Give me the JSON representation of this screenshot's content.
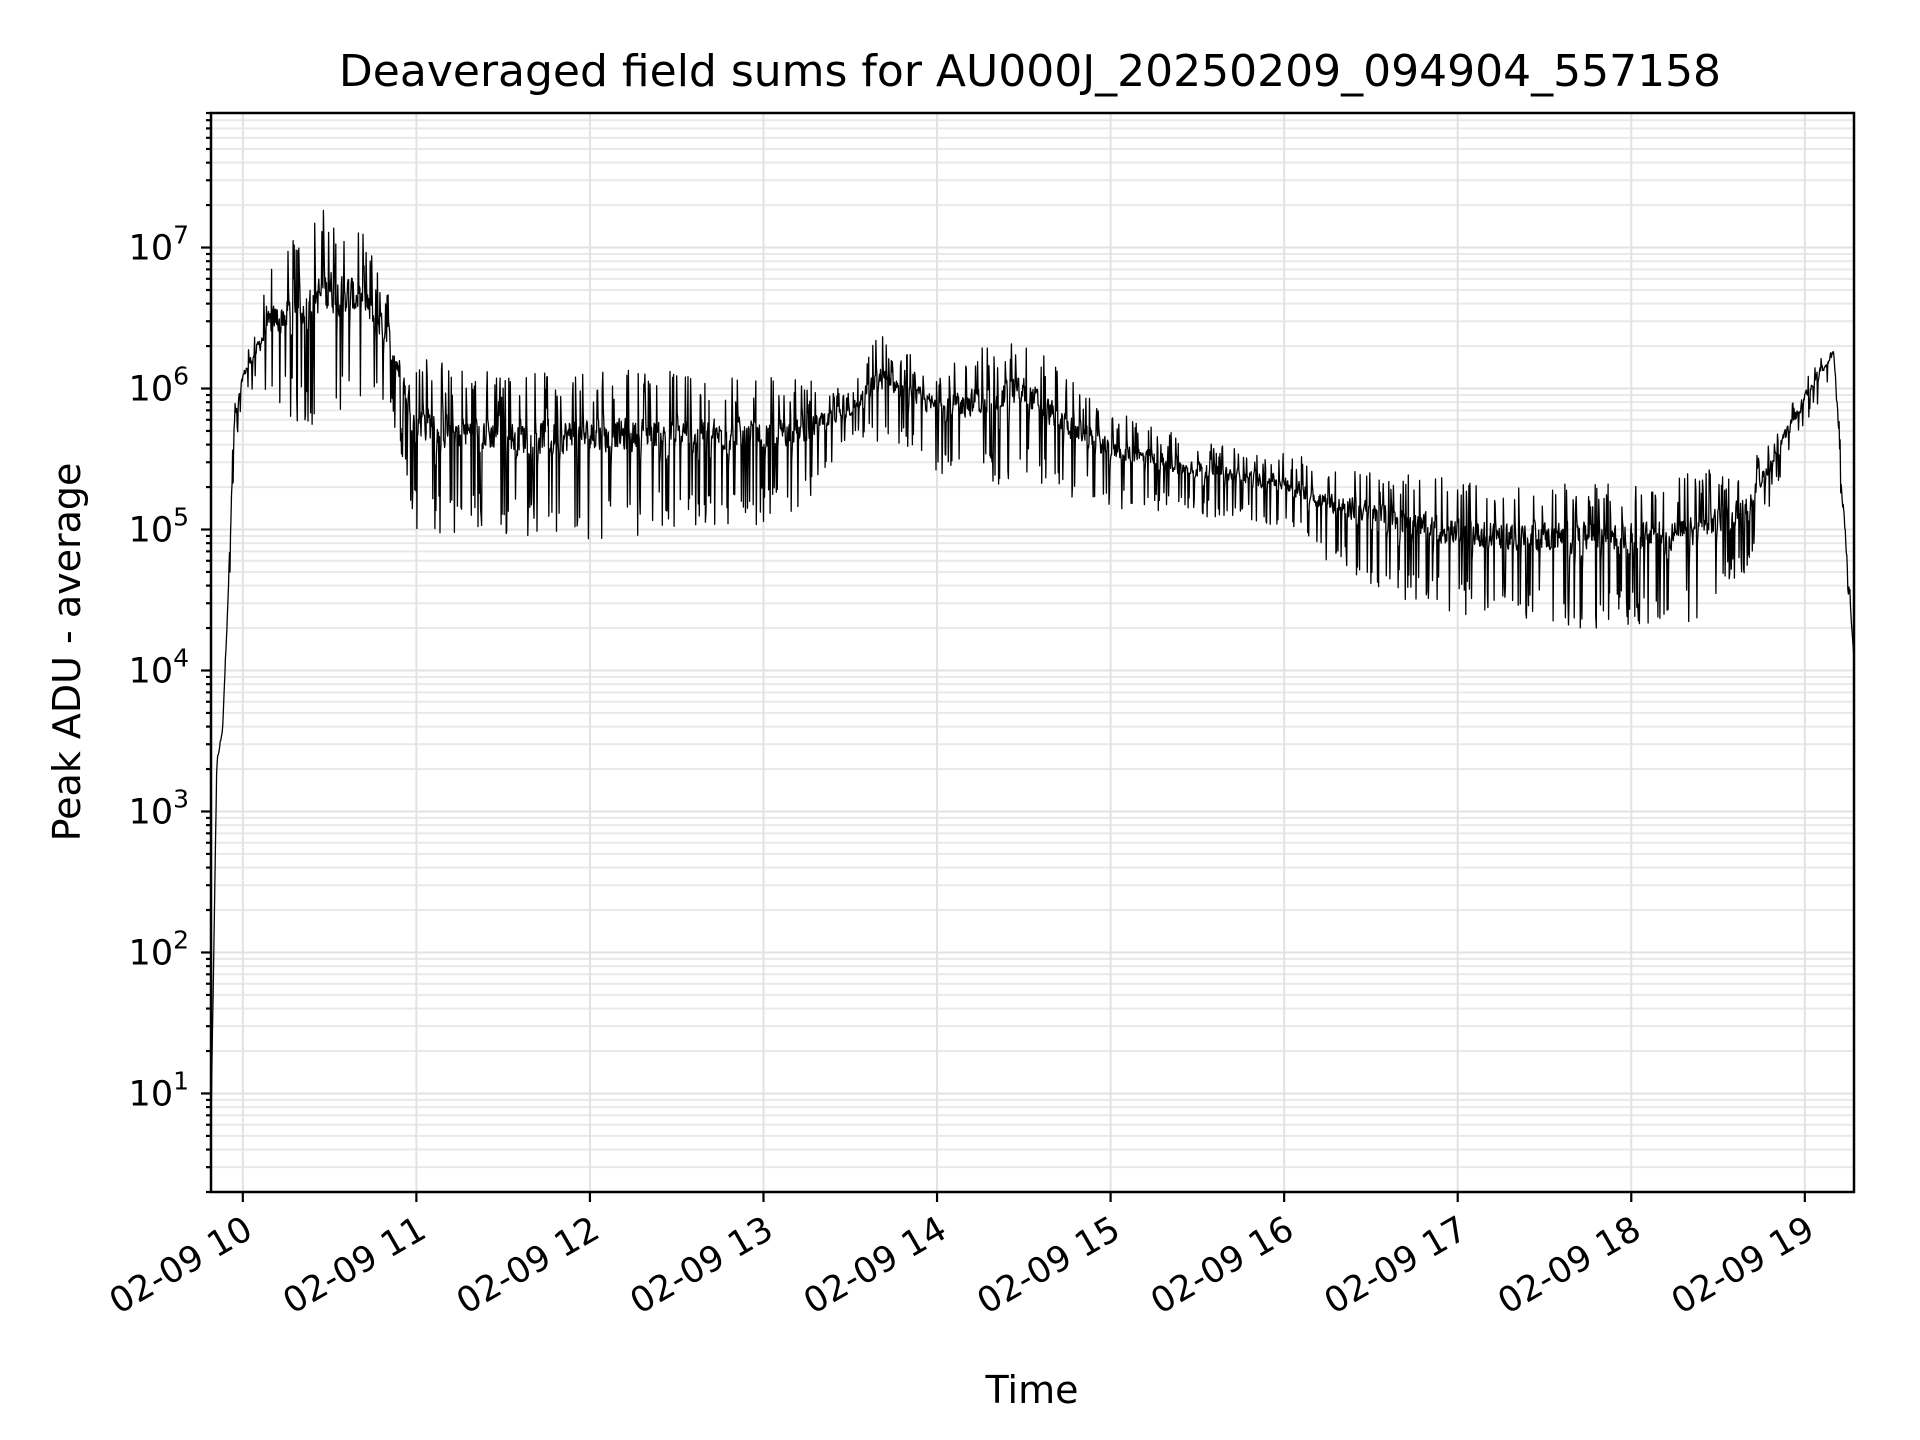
{
  "chart_data": {
    "type": "line",
    "title": "Deaveraged field sums for AU000J_20250209_094904_557158",
    "xlabel": "Time",
    "ylabel": "Peak ADU - average",
    "yscale": "log",
    "xlim": [
      "2025-02-09 09:49",
      "2025-02-09 19:17"
    ],
    "ylim": [
      2,
      90000000
    ],
    "grid": true,
    "x_ticks": [
      "02-09 10",
      "02-09 11",
      "02-09 12",
      "02-09 13",
      "02-09 14",
      "02-09 15",
      "02-09 16",
      "02-09 17",
      "02-09 18",
      "02-09 19"
    ],
    "y_ticks": [
      {
        "base": "10",
        "exp": "1",
        "value": 10
      },
      {
        "base": "10",
        "exp": "2",
        "value": 100
      },
      {
        "base": "10",
        "exp": "3",
        "value": 1000
      },
      {
        "base": "10",
        "exp": "4",
        "value": 10000
      },
      {
        "base": "10",
        "exp": "5",
        "value": 100000
      },
      {
        "base": "10",
        "exp": "6",
        "value": 1000000
      },
      {
        "base": "10",
        "exp": "7",
        "value": 10000000
      }
    ],
    "series": [
      {
        "color": "#000000",
        "envelope_x": [
          "2025-02-09 09:49",
          "2025-02-09 09:51",
          "2025-02-09 09:53",
          "2025-02-09 09:55",
          "2025-02-09 09:57",
          "2025-02-09 10:00",
          "2025-02-09 10:05",
          "2025-02-09 10:10",
          "2025-02-09 10:20",
          "2025-02-09 10:30",
          "2025-02-09 10:40",
          "2025-02-09 10:50",
          "2025-02-09 11:00",
          "2025-02-09 11:10",
          "2025-02-09 11:20",
          "2025-02-09 11:30",
          "2025-02-09 11:45",
          "2025-02-09 12:00",
          "2025-02-09 12:15",
          "2025-02-09 12:30",
          "2025-02-09 12:45",
          "2025-02-09 13:00",
          "2025-02-09 13:15",
          "2025-02-09 13:30",
          "2025-02-09 13:40",
          "2025-02-09 13:50",
          "2025-02-09 14:00",
          "2025-02-09 14:15",
          "2025-02-09 14:30",
          "2025-02-09 14:45",
          "2025-02-09 15:00",
          "2025-02-09 15:20",
          "2025-02-09 15:40",
          "2025-02-09 16:00",
          "2025-02-09 16:15",
          "2025-02-09 16:30",
          "2025-02-09 16:45",
          "2025-02-09 17:00",
          "2025-02-09 17:20",
          "2025-02-09 17:40",
          "2025-02-09 18:00",
          "2025-02-09 18:20",
          "2025-02-09 18:40",
          "2025-02-09 18:50",
          "2025-02-09 19:00",
          "2025-02-09 19:05",
          "2025-02-09 19:10",
          "2025-02-09 19:13",
          "2025-02-09 19:17"
        ],
        "envelope_low": [
          6,
          2000,
          3500,
          20000,
          300000,
          900000,
          1000000,
          700000,
          500000,
          600000,
          700000,
          800000,
          100000,
          90000,
          100000,
          90000,
          85000,
          85000,
          90000,
          100000,
          100000,
          110000,
          150000,
          400000,
          400000,
          350000,
          250000,
          200000,
          220000,
          170000,
          140000,
          130000,
          120000,
          100000,
          60000,
          40000,
          30000,
          25000,
          22000,
          20000,
          20000,
          21000,
          50000,
          200000,
          500000,
          800000,
          1200000,
          80000,
          12000
        ],
        "envelope_high": [
          6,
          2300,
          4000,
          60000,
          800000,
          1500000,
          3000000,
          8000000,
          15000000,
          20000000,
          15000000,
          5000000,
          2000000,
          1500000,
          1400000,
          1300000,
          1400000,
          1400000,
          1400000,
          1350000,
          1300000,
          1250000,
          1150000,
          1000000,
          2500000,
          1800000,
          1500000,
          2000000,
          2500000,
          1200000,
          700000,
          500000,
          400000,
          350000,
          300000,
          280000,
          250000,
          230000,
          230000,
          230000,
          230000,
          250000,
          300000,
          500000,
          1200000,
          1800000,
          2400000,
          300000,
          12000
        ],
        "envelope_shape": "dense noisy signal oscillating between envelope_low and envelope_high"
      }
    ]
  }
}
